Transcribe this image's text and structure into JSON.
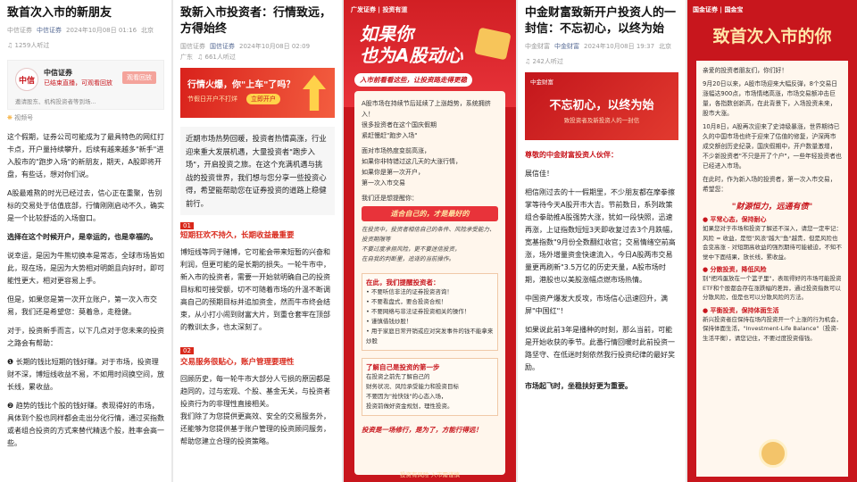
{
  "p1": {
    "title": "致首次入市的新朋友",
    "meta": [
      "中信证券",
      "中信证券",
      "2024年10月08日 01:16",
      "北京",
      "1259人听过"
    ],
    "account_name": "中信证券",
    "account_desc": "已结束直播，可观看回放",
    "account_button": "观看回放",
    "live_note": "邀请股东、机构投资者等到场...",
    "video_label": "视频号",
    "paragraphs": [
      "这个假期，证券公司可能成为了最具特色的网红打卡点，开户量持续攀升，后续有越来越多\"新手\"进入股市的\"跑步入场\"的新朋友，期天，A股即将开盘，有些话，想对你们说。",
      "A股最难熬的时光已经过去，信心正在重聚，告别标的交易处于估值底部，行情刚刚启动不久，确实是一个比较舒适的入场窗口。",
      "选择在这个时候开户，是幸运的，也是幸福的。",
      "说幸运，是因为牛熊切换本是常态，全球市场皆如此，现在场，是因为大势相对明朗且向好时，即可能性更大，相对更容易上手。",
      "但是，如果您是第一次开立账户，第一次入市交易，我们还是希望您：莫着急，走稳健。",
      "对于，投资新手而言，以下几点对于您未来的投资之路会有帮助：",
      "❶ 长期的钱比短期的钱好赚。对于市场，投资理财不深，博短线收益不易，不如用时间换空间，放长线，累收益。",
      "❷ 趋势的钱比个股的钱好赚。表现得好的市场，具体到个股也同样都会走出分化行情，通过买指数或者组合投资的方式来替代精选个股，胜率会高一些。"
    ]
  },
  "p2": {
    "title": "致新入市投资者：行情致远，方得始终",
    "meta": [
      "国信证券",
      "国信证券",
      "2024年10月08日 02:09",
      "广东",
      "661人听过"
    ],
    "banner_title": "行情火爆，你\"上车\"了吗？",
    "banner_sub": "节假日开户不打烊",
    "banner_button": "立即开户",
    "intro": "近期市场热势回暖，投资者热情高涨，行业迎来重大发展机遇，大量投资者\"跑步入场\"，开启投资之旅。在这个充满机遇与挑战的投资世界，我们想与您分享一些投资心得，希望能帮助您在证券投资的道路上稳健前行。",
    "sec1_num": "01",
    "sec1_title": "短期狂欢不持久，长期收益最重要",
    "sec1_text": "博短线等同于赌博，它可能会带来短暂的兴奋和利润，但更可能的是长期的损失。一轮牛市中，新入市的投资者，需要一开始就明确自己的投资目标和可接受额，切不可随着市场的升温不断调高自己的预期目标并追加资金，然而牛市终会结束，从小打小闹到财富大片，到重仓套牢在顶部的教训太多，也太深刻了。",
    "sec2_num": "02",
    "sec2_title": "交易服务很贴心，账户管理要理性",
    "sec2_text": "回顾历史，每一轮牛市大部分人亏损的原因都是趋同的，过与宏观、个股、基金无关，与投资者投资行为的非理性直接相关。",
    "sec2_text2": "我们除了为您提供更高效、安全的交易服务外，还能够为您提供基于账户管理的投资顾问服务，帮助您建立合理的投资策略。"
  },
  "p3": {
    "brand": "广发证券",
    "brand_sub": "投资有道",
    "hero_line1": "如果你",
    "hero_line2": "也为A股动心",
    "hero_sub": "入市前看看这些，让投资路走得更稳",
    "intro_lines": [
      "A股市场在持续节后延续了上涨趋势，系统拥挤入！",
      "很多投资者在这个国庆假期",
      "紧赶慢赶\"跑步入场\"",
      "面对市场热度变前高涨，",
      "如果你非特错过这几天的大涨行情，",
      "如果你是第一次开户，",
      "第一次入市交易"
    ],
    "tip_intro": "我们还是想提醒你：",
    "tip_badge": "适合自己的，才是最好的",
    "tip_lines": [
      "在投资中，投资者相信自己的条件、风险承受能力、投资期限等",
      "不要过度承担风险，更不要迷信投资，",
      "在自我的判断里，追逐的当前操作。"
    ],
    "list_title": "在此，我们提醒投资者：",
    "list": [
      "不要听信非法的证券投资咨询！",
      "不要看盘式，要合投资合规！",
      "不要网络与非法证券投资相关的操作！",
      "谨慎借钱炒股！",
      "用于家庭日常开销或应对突发事件的钱不能拿来炒股"
    ],
    "step_title": "了解自己是投资的第一步",
    "step_lines": [
      "在投资之前先了解自己的",
      "财务状况、风险承受能力和投资目标",
      "不要因为\"抢快钱\"的心态入场，",
      "投资前做好资金规划，理性投资。"
    ],
    "closing": "投资是一场修行，是为了，方能行得远！",
    "footer": "投资有风险 入市需谨慎"
  },
  "p4": {
    "title": "中金财富致新开户投资人的一封信：不忘初心，以终为始",
    "meta": [
      "中金财富",
      "中金财富",
      "2024年10月08日 19:37",
      "北京",
      "242人听过"
    ],
    "banner_brand": "中金财富",
    "banner_title": "不忘初心，以终为始",
    "banner_sub": "致投资者及新投资人的一封信",
    "greeting": "尊敬的中金财富投资人伙伴：",
    "hello": "展信佳！",
    "para1": "相信刚过去的十一假期里，不少朋友都在摩拳擦掌等待今天A股开市大吉。节前数日，系列政策组合拳助推A股强势大涨，犹如一段快照，迅速再涨，上证指数短短3天即收复过去3个月跌幅，宽基指数\"9月份全数翻红收官；交易情绪空前高涨，场外增量资金快速流入，今日A股两市交易量更再刷新\"3.5万亿的历史天量，A股市场时期，港股也以美股涨幅点燃市场热情。",
    "para2": "中国资产爆发大反攻，市场信心迅速回升，满屏\"中国红\"！",
    "para3": "如果说此前3年是播种的时刻，那么当前，可能是开始收获的季节。此番行情回暖时此前投资一路坚守、在低迷时刻依然我行投资纪律的最好奖励。",
    "closing": "市场起飞时，坐稳扶好更为重要。"
  },
  "p5": {
    "brand": "国金证券",
    "brand_sub": "国金宝",
    "hero": "致首次入市的你",
    "salutation": "亲爱的投资者朋友们，你们好！",
    "para1": "9月20日以来，A股市场迎来大幅反弹，8个交易日涨幅达900点，市场情绪高涨，市场交易额冲击巨量，各指数创新高，在此背景下，入场投资未来，股市大涨。",
    "para2": "10月8日，A股再次迎来了史诗级暴涨，世界期待已久的中国市场也终于迎来了估值的修复，沪深两市成交额创历史纪录，国庆假期中，开户数量激增，不少新投资者\"不只是开了个户\"，一些年轻投资者也已经进入市场。",
    "para3": "在此时，作为新入场的投资者，第一次入市交易，希望您：",
    "motto": "\"财源恒力，远通有债\"",
    "items": [
      {
        "title": "平常心态，保持耐心",
        "text": "如果您对于市场和投资了解还不深入，请您一定牢记：风险 = 收益，是恒\"风浪\"越大\"鱼\"越贵，但是风险也会变高涨 - 对短期高收益的强烈期待可能被迫，不知不觉中下面结果，放长线，累收益。"
      },
      {
        "title": "分散投资，降低风险",
        "text": "别\"把鸡蛋放在一个篮子里\"，表现得好的市场可能投资ETF和个股都会存在涨跌幅的差异，通过投资指数可以分散风险，但是也可以分散风险的方法。"
      },
      {
        "title": "平衡投资，保持体面生活",
        "text": "新兴投资者应保持在场内投资开一个上涨的行为机会，保持体面生活，\"Investment-Life Balance\"（投资-生活平衡），请您记住，不要过度投资借钱。"
      }
    ]
  }
}
